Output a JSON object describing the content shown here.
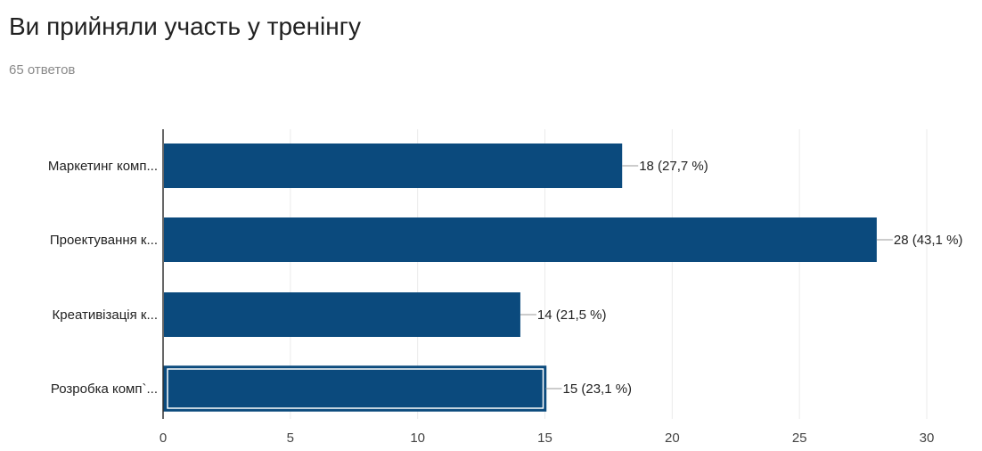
{
  "header": {
    "title": "Ви прийняли участь у тренінгу",
    "responses": "65 ответов"
  },
  "colors": {
    "bar": "#0b4a7d",
    "axis": "#333333",
    "grid": "#ebebeb",
    "leader": "#999999",
    "highlight_border": "#ffffff"
  },
  "chart_data": {
    "type": "bar",
    "orientation": "horizontal",
    "categories": [
      "Маркетинг комп...",
      "Проектування к...",
      "Креативізація к...",
      "Розробка комп`..."
    ],
    "values": [
      18,
      28,
      14,
      15
    ],
    "value_labels": [
      "18 (27,7 %)",
      "28 (43,1 %)",
      "14 (21,5 %)",
      "15 (23,1 %)"
    ],
    "highlighted_index": 3,
    "x_ticks": [
      0,
      5,
      10,
      15,
      20,
      25,
      30
    ],
    "xlim": [
      0,
      30
    ],
    "grid": true
  }
}
